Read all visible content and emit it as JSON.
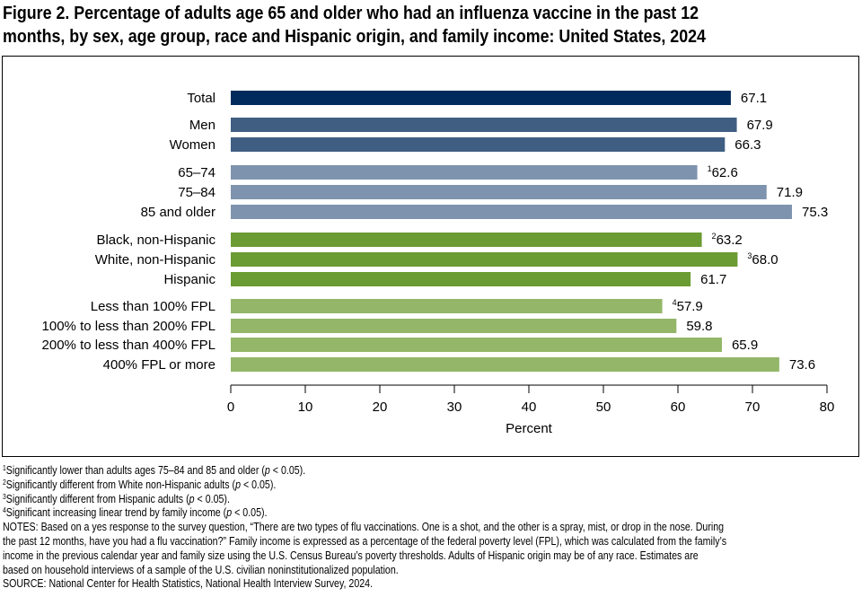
{
  "title_line1": "Figure 2. Percentage of adults age 65 and older who had an influenza vaccine in the past 12",
  "title_line2": "months, by sex, age group, race and Hispanic origin, and family income: United States, 2024",
  "chart_data": {
    "type": "bar",
    "orientation": "horizontal",
    "xlabel": "Percent",
    "xlim": [
      0,
      80
    ],
    "xticks": [
      0,
      10,
      20,
      30,
      40,
      50,
      60,
      70,
      80
    ],
    "grid": false,
    "categories": [
      "Total",
      "Men",
      "Women",
      "65–74",
      "75–84",
      "85 and older",
      "Black, non-Hispanic",
      "White, non-Hispanic",
      "Hispanic",
      "Less than 100% FPL",
      "100% to less than 200% FPL",
      "200% to less than 400% FPL",
      "400% FPL or more"
    ],
    "values": [
      67.1,
      67.9,
      66.3,
      62.6,
      71.9,
      75.3,
      63.2,
      68.0,
      61.7,
      57.9,
      59.8,
      65.9,
      73.6
    ],
    "value_labels": [
      "67.1",
      "67.9",
      "66.3",
      "62.6",
      "71.9",
      "75.3",
      "63.2",
      "68.0",
      "61.7",
      "57.9",
      "59.8",
      "65.9",
      "73.6"
    ],
    "footnote_marks": [
      "",
      "",
      "",
      "1",
      "",
      "",
      "2",
      "3",
      "",
      "4",
      "",
      "",
      ""
    ],
    "groups": [
      "total",
      "sex",
      "sex",
      "age",
      "age",
      "age",
      "race",
      "race",
      "race",
      "income",
      "income",
      "income",
      "income"
    ],
    "colors": {
      "total": "#002b5c",
      "sex": "#3f5e82",
      "age": "#7e93ad",
      "race": "#6b9b33",
      "income": "#93b668"
    }
  },
  "footnotes": [
    {
      "mark": "1",
      "pre": "Significantly lower than adults ages 75–84 and 85 and older (",
      "p": "p",
      "post": " < 0.05)."
    },
    {
      "mark": "2",
      "pre": "Significantly different from White non-Hispanic adults (",
      "p": "p",
      "post": " < 0.05)."
    },
    {
      "mark": "3",
      "pre": "Significantly different from Hispanic adults (",
      "p": "p",
      "post": " < 0.05)."
    },
    {
      "mark": "4",
      "pre": "Significant increasing linear trend by family income (",
      "p": "p",
      "post": " < 0.05)."
    }
  ],
  "notes_lines": [
    "NOTES: Based on a yes response to the survey question, “There are two types of flu vaccinations. One is a shot, and the other is a spray, mist, or drop in the nose. During",
    "the past 12 months, have you had a flu vaccination?” Family income is expressed as a percentage of the federal poverty level (FPL), which was calculated from the family’s",
    "income in the previous calendar year and family size using the U.S. Census Bureau’s poverty thresholds. Adults of Hispanic origin may be of any race. Estimates are",
    "based on household interviews of a sample of the U.S. civilian noninstitutionalized population."
  ],
  "source": "SOURCE: National Center for Health Statistics, National Health Interview Survey, 2024."
}
